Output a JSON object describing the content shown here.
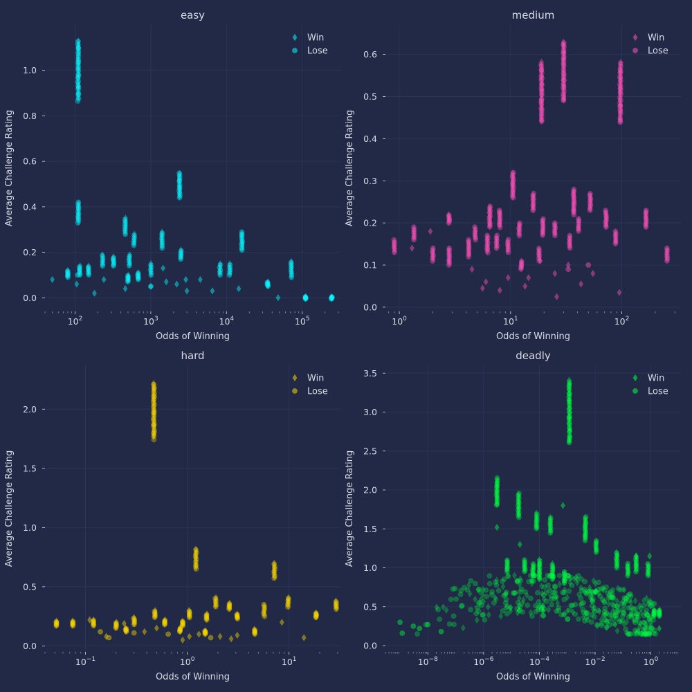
{
  "chart_data": [
    {
      "type": "scatter",
      "title": "easy",
      "xlabel": "Odds of Winning",
      "ylabel": "Average Challenge Rating",
      "xscale": "log",
      "xlim": [
        40,
        320000
      ],
      "ylim": [
        -0.06,
        1.2
      ],
      "xticks": [
        {
          "v": 100,
          "m": "10",
          "e": "2"
        },
        {
          "v": 1000,
          "m": "10",
          "e": "3"
        },
        {
          "v": 10000,
          "m": "10",
          "e": "4"
        },
        {
          "v": 100000,
          "m": "10",
          "e": "5"
        }
      ],
      "yticks": [
        {
          "v": 0.0,
          "label": "0.0"
        },
        {
          "v": 0.2,
          "label": "0.2"
        },
        {
          "v": 0.4,
          "label": "0.4"
        },
        {
          "v": 0.6,
          "label": "0.6"
        },
        {
          "v": 0.8,
          "label": "0.8"
        },
        {
          "v": 1.0,
          "label": "1.0"
        }
      ],
      "grid": true,
      "legend": "top-right",
      "color": "#08f7fe",
      "series": [
        {
          "name": "Win",
          "marker": "diamond"
        },
        {
          "name": "Lose",
          "marker": "circle"
        }
      ],
      "clusters": [
        {
          "x": 110,
          "ymin": 0.87,
          "ymax": 1.13
        },
        {
          "x": 110,
          "ymin": 0.33,
          "ymax": 0.42
        },
        {
          "x": 2400,
          "ymin": 0.44,
          "ymax": 0.55
        },
        {
          "x": 460,
          "ymin": 0.28,
          "ymax": 0.35
        },
        {
          "x": 600,
          "ymin": 0.23,
          "ymax": 0.28
        },
        {
          "x": 1400,
          "ymin": 0.22,
          "ymax": 0.29
        },
        {
          "x": 16000,
          "ymin": 0.21,
          "ymax": 0.29
        },
        {
          "x": 80,
          "ymin": 0.09,
          "ymax": 0.12
        },
        {
          "x": 115,
          "ymin": 0.1,
          "ymax": 0.14
        },
        {
          "x": 150,
          "ymin": 0.1,
          "ymax": 0.14
        },
        {
          "x": 230,
          "ymin": 0.14,
          "ymax": 0.19
        },
        {
          "x": 320,
          "ymin": 0.14,
          "ymax": 0.18
        },
        {
          "x": 520,
          "ymin": 0.14,
          "ymax": 0.19
        },
        {
          "x": 1000,
          "ymin": 0.1,
          "ymax": 0.15
        },
        {
          "x": 2500,
          "ymin": 0.17,
          "ymax": 0.21
        },
        {
          "x": 8200,
          "ymin": 0.1,
          "ymax": 0.15
        },
        {
          "x": 11000,
          "ymin": 0.1,
          "ymax": 0.15
        },
        {
          "x": 72000,
          "ymin": 0.09,
          "ymax": 0.16
        },
        {
          "x": 35000,
          "ymin": 0.05,
          "ymax": 0.07
        },
        {
          "x": 110000,
          "ymin": -0.005,
          "ymax": 0.005
        },
        {
          "x": 245000,
          "ymin": -0.005,
          "ymax": 0.005
        },
        {
          "x": 500,
          "ymin": 0.07,
          "ymax": 0.1
        },
        {
          "x": 680,
          "ymin": 0.08,
          "ymax": 0.11
        }
      ],
      "points": [
        {
          "x": 50,
          "y": 0.08,
          "s": "Win"
        },
        {
          "x": 105,
          "y": 0.06,
          "s": "Win"
        },
        {
          "x": 180,
          "y": 0.02,
          "s": "Win"
        },
        {
          "x": 240,
          "y": 0.08,
          "s": "Win"
        },
        {
          "x": 460,
          "y": 0.04,
          "s": "Win"
        },
        {
          "x": 1000,
          "y": 0.05,
          "s": "Win"
        },
        {
          "x": 1600,
          "y": 0.07,
          "s": "Win"
        },
        {
          "x": 2200,
          "y": 0.06,
          "s": "Win"
        },
        {
          "x": 2900,
          "y": 0.08,
          "s": "Win"
        },
        {
          "x": 3000,
          "y": 0.03,
          "s": "Win"
        },
        {
          "x": 4500,
          "y": 0.08,
          "s": "Win"
        },
        {
          "x": 6500,
          "y": 0.03,
          "s": "Win"
        },
        {
          "x": 14500,
          "y": 0.04,
          "s": "Win"
        },
        {
          "x": 48000,
          "y": 0.0,
          "s": "Win"
        },
        {
          "x": 1450,
          "y": 0.13,
          "s": "Win"
        },
        {
          "x": 108,
          "y": 0.1,
          "s": "Lose"
        },
        {
          "x": 1000,
          "y": 0.05,
          "s": "Lose"
        }
      ]
    },
    {
      "type": "scatter",
      "title": "medium",
      "xlabel": "Odds of Winning",
      "ylabel": "Average Challenge Rating",
      "xscale": "log",
      "xlim": [
        0.75,
        340
      ],
      "ylim": [
        -0.01,
        0.67
      ],
      "xticks": [
        {
          "v": 1,
          "m": "10",
          "e": "0"
        },
        {
          "v": 10,
          "m": "10",
          "e": "1"
        },
        {
          "v": 100,
          "m": "10",
          "e": "2"
        }
      ],
      "yticks": [
        {
          "v": 0.0,
          "label": "0.0"
        },
        {
          "v": 0.1,
          "label": "0.1"
        },
        {
          "v": 0.2,
          "label": "0.2"
        },
        {
          "v": 0.3,
          "label": "0.3"
        },
        {
          "v": 0.4,
          "label": "0.4"
        },
        {
          "v": 0.5,
          "label": "0.5"
        },
        {
          "v": 0.6,
          "label": "0.6"
        }
      ],
      "grid": true,
      "legend": "top-right",
      "color": "#fe53bb",
      "series": [
        {
          "name": "Win",
          "marker": "diamond"
        },
        {
          "name": "Lose",
          "marker": "circle"
        }
      ],
      "clusters": [
        {
          "x": 19,
          "ymin": 0.44,
          "ymax": 0.58
        },
        {
          "x": 30,
          "ymin": 0.49,
          "ymax": 0.63
        },
        {
          "x": 97,
          "ymin": 0.44,
          "ymax": 0.58
        },
        {
          "x": 10.5,
          "ymin": 0.26,
          "ymax": 0.32
        },
        {
          "x": 16,
          "ymin": 0.23,
          "ymax": 0.27
        },
        {
          "x": 37,
          "ymin": 0.22,
          "ymax": 0.28
        },
        {
          "x": 52,
          "ymin": 0.23,
          "ymax": 0.27
        },
        {
          "x": 6.5,
          "ymin": 0.19,
          "ymax": 0.24
        },
        {
          "x": 8,
          "ymin": 0.19,
          "ymax": 0.23
        },
        {
          "x": 0.9,
          "ymin": 0.13,
          "ymax": 0.16
        },
        {
          "x": 1.35,
          "ymin": 0.16,
          "ymax": 0.19
        },
        {
          "x": 2,
          "ymin": 0.11,
          "ymax": 0.14
        },
        {
          "x": 2.8,
          "ymin": 0.2,
          "ymax": 0.22
        },
        {
          "x": 2.8,
          "ymin": 0.1,
          "ymax": 0.14
        },
        {
          "x": 4.2,
          "ymin": 0.12,
          "ymax": 0.16
        },
        {
          "x": 4.8,
          "ymin": 0.16,
          "ymax": 0.19
        },
        {
          "x": 6.2,
          "ymin": 0.13,
          "ymax": 0.17
        },
        {
          "x": 7.5,
          "ymin": 0.14,
          "ymax": 0.17
        },
        {
          "x": 9.5,
          "ymin": 0.13,
          "ymax": 0.16
        },
        {
          "x": 12,
          "ymin": 0.17,
          "ymax": 0.2
        },
        {
          "x": 19.5,
          "ymin": 0.17,
          "ymax": 0.21
        },
        {
          "x": 25,
          "ymin": 0.17,
          "ymax": 0.2
        },
        {
          "x": 34,
          "ymin": 0.14,
          "ymax": 0.17
        },
        {
          "x": 41,
          "ymin": 0.18,
          "ymax": 0.21
        },
        {
          "x": 72,
          "ymin": 0.19,
          "ymax": 0.23
        },
        {
          "x": 88,
          "ymin": 0.15,
          "ymax": 0.18
        },
        {
          "x": 165,
          "ymin": 0.19,
          "ymax": 0.23
        },
        {
          "x": 255,
          "ymin": 0.11,
          "ymax": 0.14
        },
        {
          "x": 18,
          "ymin": 0.11,
          "ymax": 0.14
        },
        {
          "x": 12.5,
          "ymin": 0.09,
          "ymax": 0.11
        }
      ],
      "points": [
        {
          "x": 1.3,
          "y": 0.14,
          "s": "Win"
        },
        {
          "x": 1.9,
          "y": 0.18,
          "s": "Win"
        },
        {
          "x": 4.5,
          "y": 0.09,
          "s": "Win"
        },
        {
          "x": 5.6,
          "y": 0.045,
          "s": "Win"
        },
        {
          "x": 6,
          "y": 0.06,
          "s": "Win"
        },
        {
          "x": 8,
          "y": 0.04,
          "s": "Win"
        },
        {
          "x": 9.5,
          "y": 0.07,
          "s": "Win"
        },
        {
          "x": 13.5,
          "y": 0.05,
          "s": "Win"
        },
        {
          "x": 14.5,
          "y": 0.07,
          "s": "Win"
        },
        {
          "x": 18.5,
          "y": 0.11,
          "s": "Win"
        },
        {
          "x": 25,
          "y": 0.08,
          "s": "Win"
        },
        {
          "x": 26,
          "y": 0.025,
          "s": "Win"
        },
        {
          "x": 33,
          "y": 0.1,
          "s": "Win"
        },
        {
          "x": 43,
          "y": 0.055,
          "s": "Win"
        },
        {
          "x": 55,
          "y": 0.08,
          "s": "Win"
        },
        {
          "x": 95,
          "y": 0.035,
          "s": "Win"
        },
        {
          "x": 33,
          "y": 0.09,
          "s": "Lose"
        },
        {
          "x": 50,
          "y": 0.1,
          "s": "Lose"
        }
      ]
    },
    {
      "type": "scatter",
      "title": "hard",
      "xlabel": "Odds of Winning",
      "ylabel": "Average Challenge Rating",
      "xscale": "log",
      "xlim": [
        0.04,
        32
      ],
      "ylim": [
        -0.05,
        2.37
      ],
      "xticks": [
        {
          "v": 0.1,
          "m": "10",
          "e": "−1"
        },
        {
          "v": 1,
          "m": "10",
          "e": "0"
        },
        {
          "v": 10,
          "m": "10",
          "e": "1"
        }
      ],
      "yticks": [
        {
          "v": 0.0,
          "label": "0.0"
        },
        {
          "v": 0.5,
          "label": "0.5"
        },
        {
          "v": 1.0,
          "label": "1.0"
        },
        {
          "v": 1.5,
          "label": "1.5"
        },
        {
          "v": 2.0,
          "label": "2.0"
        }
      ],
      "grid": true,
      "legend": "top-right",
      "color": "#f5d300",
      "series": [
        {
          "name": "Win",
          "marker": "diamond"
        },
        {
          "name": "Lose",
          "marker": "circle"
        }
      ],
      "clusters": [
        {
          "x": 0.47,
          "ymin": 1.75,
          "ymax": 2.22
        },
        {
          "x": 1.22,
          "ymin": 0.65,
          "ymax": 0.82
        },
        {
          "x": 7.2,
          "ymin": 0.57,
          "ymax": 0.7
        },
        {
          "x": 0.052,
          "ymin": 0.17,
          "ymax": 0.21
        },
        {
          "x": 0.075,
          "ymin": 0.17,
          "ymax": 0.21
        },
        {
          "x": 0.12,
          "ymin": 0.17,
          "ymax": 0.22
        },
        {
          "x": 0.2,
          "ymin": 0.15,
          "ymax": 0.2
        },
        {
          "x": 0.3,
          "ymin": 0.18,
          "ymax": 0.24
        },
        {
          "x": 0.48,
          "ymin": 0.24,
          "ymax": 0.3
        },
        {
          "x": 0.6,
          "ymin": 0.18,
          "ymax": 0.22
        },
        {
          "x": 0.9,
          "ymin": 0.17,
          "ymax": 0.21
        },
        {
          "x": 1.05,
          "ymin": 0.24,
          "ymax": 0.3
        },
        {
          "x": 1.55,
          "ymin": 0.22,
          "ymax": 0.27
        },
        {
          "x": 1.9,
          "ymin": 0.33,
          "ymax": 0.41
        },
        {
          "x": 2.6,
          "ymin": 0.31,
          "ymax": 0.36
        },
        {
          "x": 3.1,
          "ymin": 0.23,
          "ymax": 0.27
        },
        {
          "x": 5.7,
          "ymin": 0.25,
          "ymax": 0.35
        },
        {
          "x": 9.8,
          "ymin": 0.33,
          "ymax": 0.41
        },
        {
          "x": 18.5,
          "ymin": 0.24,
          "ymax": 0.28
        },
        {
          "x": 29,
          "ymin": 0.31,
          "ymax": 0.38
        },
        {
          "x": 4.6,
          "ymin": 0.1,
          "ymax": 0.14
        },
        {
          "x": 0.85,
          "ymin": 0.12,
          "ymax": 0.15
        },
        {
          "x": 0.25,
          "ymin": 0.12,
          "ymax": 0.15
        },
        {
          "x": 1.5,
          "ymin": 0.1,
          "ymax": 0.13
        }
      ],
      "points": [
        {
          "x": 0.11,
          "y": 0.22,
          "s": "Win"
        },
        {
          "x": 0.16,
          "y": 0.08,
          "s": "Win"
        },
        {
          "x": 0.24,
          "y": 0.19,
          "s": "Win"
        },
        {
          "x": 0.38,
          "y": 0.12,
          "s": "Win"
        },
        {
          "x": 0.5,
          "y": 0.15,
          "s": "Win"
        },
        {
          "x": 0.9,
          "y": 0.05,
          "s": "Win"
        },
        {
          "x": 1.05,
          "y": 0.08,
          "s": "Win"
        },
        {
          "x": 1.3,
          "y": 0.1,
          "s": "Win"
        },
        {
          "x": 2.1,
          "y": 0.08,
          "s": "Win"
        },
        {
          "x": 2.7,
          "y": 0.06,
          "s": "Win"
        },
        {
          "x": 3.1,
          "y": 0.09,
          "s": "Win"
        },
        {
          "x": 8.5,
          "y": 0.2,
          "s": "Win"
        },
        {
          "x": 14,
          "y": 0.07,
          "s": "Win"
        },
        {
          "x": 0.14,
          "y": 0.12,
          "s": "Lose"
        },
        {
          "x": 0.17,
          "y": 0.07,
          "s": "Lose"
        },
        {
          "x": 0.3,
          "y": 0.11,
          "s": "Lose"
        },
        {
          "x": 0.65,
          "y": 0.1,
          "s": "Lose"
        },
        {
          "x": 1.7,
          "y": 0.07,
          "s": "Lose"
        }
      ]
    },
    {
      "type": "scatter",
      "title": "deadly",
      "xlabel": "Odds of Winning",
      "ylabel": "Average Challenge Rating",
      "xscale": "log",
      "xlim": [
        3e-10,
        12
      ],
      "ylim": [
        -0.08,
        3.6
      ],
      "xticks": [
        {
          "v": 1e-08,
          "m": "10",
          "e": "−8"
        },
        {
          "v": 1e-06,
          "m": "10",
          "e": "−6"
        },
        {
          "v": 0.0001,
          "m": "10",
          "e": "−4"
        },
        {
          "v": 0.01,
          "m": "10",
          "e": "−2"
        },
        {
          "v": 1,
          "m": "10",
          "e": "0"
        }
      ],
      "yticks": [
        {
          "v": 0.0,
          "label": "0.0"
        },
        {
          "v": 0.5,
          "label": "0.5"
        },
        {
          "v": 1.0,
          "label": "1.0"
        },
        {
          "v": 1.5,
          "label": "1.5"
        },
        {
          "v": 2.0,
          "label": "2.0"
        },
        {
          "v": 2.5,
          "label": "2.5"
        },
        {
          "v": 3.0,
          "label": "3.0"
        },
        {
          "v": 3.5,
          "label": "3.5"
        }
      ],
      "grid": true,
      "legend": "top-right",
      "color": "#00ff41",
      "series": [
        {
          "name": "Win",
          "marker": "diamond"
        },
        {
          "name": "Lose",
          "marker": "circle"
        }
      ],
      "clusters": [
        {
          "x": 0.0012,
          "ymin": 2.6,
          "ymax": 3.4
        },
        {
          "x": 3e-06,
          "ymin": 1.8,
          "ymax": 2.15
        },
        {
          "x": 1.8e-05,
          "ymin": 1.65,
          "ymax": 1.95
        },
        {
          "x": 8e-05,
          "ymin": 1.5,
          "ymax": 1.7
        },
        {
          "x": 0.00025,
          "ymin": 1.45,
          "ymax": 1.65
        },
        {
          "x": 0.0045,
          "ymin": 1.35,
          "ymax": 1.65
        },
        {
          "x": 0.011,
          "ymin": 1.2,
          "ymax": 1.35
        },
        {
          "x": 0.06,
          "ymin": 1.0,
          "ymax": 1.2
        },
        {
          "x": 0.15,
          "ymin": 0.9,
          "ymax": 1.05
        },
        {
          "x": 0.3,
          "ymin": 0.95,
          "ymax": 1.15
        },
        {
          "x": 0.8,
          "ymin": 0.9,
          "ymax": 1.05
        },
        {
          "x": 7e-06,
          "ymin": 0.95,
          "ymax": 1.1
        },
        {
          "x": 3e-05,
          "ymin": 0.95,
          "ymax": 1.1
        },
        {
          "x": 6e-05,
          "ymin": 0.9,
          "ymax": 1.05
        },
        {
          "x": 0.0001,
          "ymin": 0.85,
          "ymax": 1.1
        },
        {
          "x": 0.0003,
          "ymin": 0.85,
          "ymax": 1.05
        },
        {
          "x": 0.0008,
          "ymin": 0.8,
          "ymax": 0.95
        },
        {
          "x": 1.3,
          "ymin": 0.38,
          "ymax": 0.46
        },
        {
          "x": 2,
          "ymin": 0.38,
          "ymax": 0.46
        }
      ],
      "cloud": {
        "xmin": 2e-09,
        "xmax": 1.5,
        "ymin": 0.15,
        "ymax": 0.9,
        "n": 420
      },
      "points": [
        {
          "x": 1e-09,
          "y": 0.3,
          "s": "Lose"
        },
        {
          "x": 1.2e-09,
          "y": 0.16,
          "s": "Lose"
        },
        {
          "x": 3e-09,
          "y": 0.25,
          "s": "Lose"
        },
        {
          "x": 5e-09,
          "y": 0.22,
          "s": "Lose"
        },
        {
          "x": 1e-08,
          "y": 0.27,
          "s": "Lose"
        },
        {
          "x": 3e-08,
          "y": 0.18,
          "s": "Lose"
        },
        {
          "x": 2e-05,
          "y": 1.3,
          "s": "Win"
        },
        {
          "x": 0.0007,
          "y": 1.8,
          "s": "Win"
        },
        {
          "x": 0.3,
          "y": 1.15,
          "s": "Win"
        },
        {
          "x": 2.0,
          "y": 0.22,
          "s": "Win"
        },
        {
          "x": 0.9,
          "y": 1.15,
          "s": "Win"
        },
        {
          "x": 3e-06,
          "y": 1.52,
          "s": "Win"
        }
      ]
    }
  ]
}
